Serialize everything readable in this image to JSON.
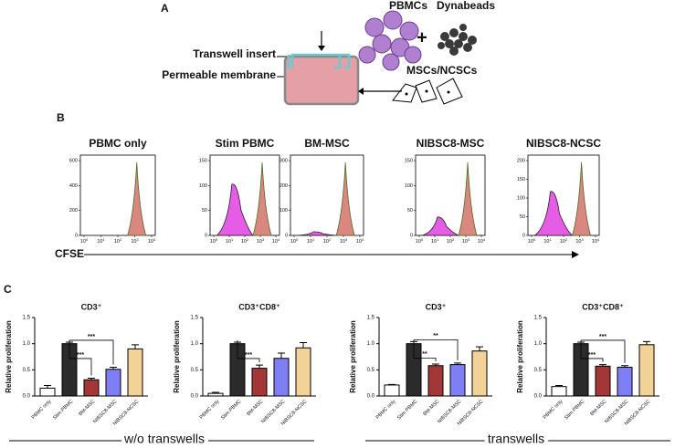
{
  "panel_a": {
    "label": "A",
    "pbmcs": "PBMCs",
    "dynabeads": "Dynabeads",
    "plus": "+",
    "transwell_insert": "Transwell insert",
    "permeable_membrane": "Permeable membrane",
    "cells": "MSCs/NCSCs"
  },
  "panel_b": {
    "label": "B",
    "x_label": "CFSE",
    "xticks": [
      {
        "base": "10",
        "exp": "0"
      },
      {
        "base": "10",
        "exp": "1"
      },
      {
        "base": "10",
        "exp": "2"
      },
      {
        "base": "10",
        "exp": "3"
      },
      {
        "base": "10",
        "exp": "4"
      }
    ],
    "histograms": [
      {
        "title": "PBMC only",
        "yticks": [
          0,
          200,
          400,
          600
        ]
      },
      {
        "title": "Stim PBMC",
        "yticks": [
          0,
          50,
          100,
          150
        ]
      },
      {
        "title": "BM-MSC",
        "yticks": [
          0,
          100,
          200,
          300
        ]
      },
      {
        "title": "NIBSC8-MSC",
        "yticks": [
          0,
          50,
          100,
          150
        ]
      },
      {
        "title": "NIBSC8-NCSC",
        "yticks": [
          0,
          50,
          100,
          150,
          200
        ]
      }
    ]
  },
  "panel_c": {
    "label": "C",
    "groups": [
      "w/o transwells",
      "transwells"
    ]
  },
  "chart_data": [
    {
      "type": "bar",
      "title": "CD3⁺",
      "y_label": "Relative proliferation",
      "categories": [
        "PBMC only",
        "Stim PBMC",
        "BM-MSC",
        "NIBSC8-MSC",
        "NIBSC8-NCSC"
      ],
      "values": [
        0.15,
        1.0,
        0.31,
        0.51,
        0.9
      ],
      "errors": [
        0.05,
        0.03,
        0.03,
        0.04,
        0.08
      ],
      "colors": [
        "#ffffff",
        "#2b2b2b",
        "#a33636",
        "#7f7ff5",
        "#f2d296"
      ],
      "significance": [
        null,
        null,
        "***",
        "***",
        null
      ],
      "ylim": [
        0,
        1.5
      ],
      "yticks": [
        {
          "value": 0,
          "label": "0.0"
        },
        0.5,
        {
          "value": 1,
          "label": "1.0"
        },
        1.5
      ]
    },
    {
      "type": "bar",
      "title": "CD3⁺CD8⁺",
      "y_label": "Relative proliferation",
      "categories": [
        "PBMC only",
        "Stim PBMC",
        "BM-MSC",
        "NIBSC8-MSC",
        "NIBSC8-NCSC"
      ],
      "values": [
        0.05,
        1.0,
        0.53,
        0.72,
        0.92
      ],
      "errors": [
        0.02,
        0.03,
        0.06,
        0.1,
        0.1
      ],
      "colors": [
        "#ffffff",
        "#2b2b2b",
        "#a33636",
        "#7f7ff5",
        "#f2d296"
      ],
      "significance": [
        null,
        null,
        "***",
        null,
        null
      ],
      "ylim": [
        0,
        1.5
      ],
      "yticks": [
        {
          "value": 0,
          "label": "0.0"
        },
        0.5,
        {
          "value": 1,
          "label": "1.0"
        },
        1.5
      ]
    },
    {
      "type": "bar",
      "title": "CD3⁺",
      "y_label": "Relative proliferation",
      "categories": [
        "PBMC only",
        "Stim PBMC",
        "BM-MSC",
        "NIBSC8-MSC",
        "NIBSC8-NCSC"
      ],
      "values": [
        0.21,
        1.0,
        0.58,
        0.6,
        0.86
      ],
      "errors": [
        0.01,
        0.04,
        0.03,
        0.03,
        0.08
      ],
      "colors": [
        "#ffffff",
        "#2b2b2b",
        "#a33636",
        "#7f7ff5",
        "#f2d296"
      ],
      "significance": [
        null,
        null,
        "**",
        "**",
        null
      ],
      "ylim": [
        0,
        1.5
      ],
      "yticks": [
        {
          "value": 0,
          "label": "0.0"
        },
        0.5,
        {
          "value": 1,
          "label": "1.0"
        },
        1.5
      ]
    },
    {
      "type": "bar",
      "title": "CD3⁺CD8⁺",
      "y_label": "Relative proliferation",
      "categories": [
        "PBMC only",
        "Stim PBMC",
        "BM-MSC",
        "NIBSC8-MSC",
        "NIBSC8-NCSC"
      ],
      "values": [
        0.18,
        1.0,
        0.57,
        0.55,
        0.98
      ],
      "errors": [
        0.02,
        0.03,
        0.03,
        0.03,
        0.06
      ],
      "colors": [
        "#ffffff",
        "#2b2b2b",
        "#a33636",
        "#7f7ff5",
        "#f2d296"
      ],
      "significance": [
        null,
        null,
        "***",
        "***",
        null
      ],
      "ylim": [
        0,
        1.5
      ],
      "yticks": [
        {
          "value": 0,
          "label": "0.0"
        },
        0.5,
        {
          "value": 1,
          "label": "1.0"
        },
        1.5
      ]
    }
  ]
}
